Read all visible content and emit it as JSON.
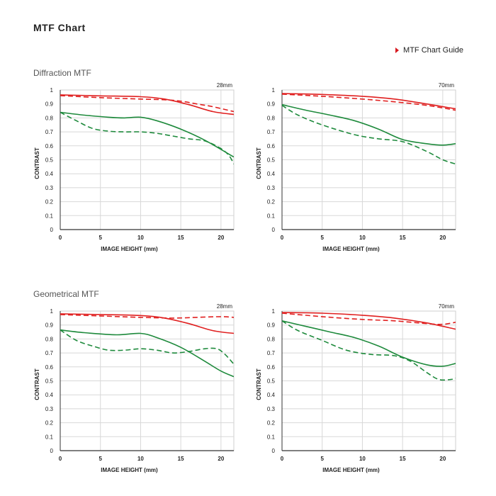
{
  "page": {
    "title": "MTF Chart",
    "guide_link": "MTF Chart Guide",
    "section_diffraction": "Diffraction MTF",
    "section_geometrical": "Geometrical MTF"
  },
  "colors": {
    "red": "#e02020",
    "green": "#1e8a3c",
    "accent": "#d71920"
  },
  "chart_data": [
    {
      "id": "diffraction-28mm",
      "type": "line",
      "focal": "28mm",
      "xlabel": "IMAGE HEIGHT (mm)",
      "ylabel": "CONTRAST",
      "xlim": [
        0,
        21.6
      ],
      "ylim": [
        0,
        1
      ],
      "xticks": [
        "0",
        "5",
        "10",
        "15",
        "20"
      ],
      "yticks": [
        "0",
        "0.1",
        "0.2",
        "0.3",
        "0.4",
        "0.5",
        "0.6",
        "0.7",
        "0.8",
        "0.9",
        "1"
      ],
      "grid": true,
      "series": [
        {
          "color": "red",
          "dash": false,
          "x": [
            0,
            5,
            10,
            13,
            16,
            19,
            21.6
          ],
          "y": [
            0.965,
            0.958,
            0.952,
            0.935,
            0.895,
            0.845,
            0.825
          ]
        },
        {
          "color": "red",
          "dash": true,
          "x": [
            0,
            5,
            10,
            13,
            15,
            17,
            19,
            21.6
          ],
          "y": [
            0.96,
            0.945,
            0.935,
            0.93,
            0.92,
            0.9,
            0.88,
            0.845
          ]
        },
        {
          "color": "green",
          "dash": false,
          "x": [
            0,
            3,
            6,
            8,
            10,
            12,
            15,
            18,
            21.6
          ],
          "y": [
            0.84,
            0.82,
            0.805,
            0.8,
            0.805,
            0.78,
            0.72,
            0.64,
            0.52
          ]
        },
        {
          "color": "green",
          "dash": true,
          "x": [
            0,
            2,
            4,
            6,
            8,
            10,
            12,
            14,
            16,
            18,
            20,
            21,
            21.6
          ],
          "y": [
            0.84,
            0.78,
            0.725,
            0.705,
            0.7,
            0.7,
            0.69,
            0.67,
            0.65,
            0.635,
            0.58,
            0.53,
            0.47
          ]
        }
      ]
    },
    {
      "id": "diffraction-70mm",
      "type": "line",
      "focal": "70mm",
      "xlabel": "IMAGE HEIGHT (mm)",
      "ylabel": "CONTRAST",
      "xlim": [
        0,
        21.6
      ],
      "ylim": [
        0,
        1
      ],
      "xticks": [
        "0",
        "5",
        "10",
        "15",
        "20"
      ],
      "yticks": [
        "0",
        "0.1",
        "0.2",
        "0.3",
        "0.4",
        "0.5",
        "0.6",
        "0.7",
        "0.8",
        "0.9",
        "1"
      ],
      "grid": true,
      "series": [
        {
          "color": "red",
          "dash": false,
          "x": [
            0,
            5,
            10,
            14,
            18,
            21.6
          ],
          "y": [
            0.975,
            0.968,
            0.955,
            0.935,
            0.9,
            0.865
          ]
        },
        {
          "color": "red",
          "dash": true,
          "x": [
            0,
            5,
            10,
            14,
            18,
            21.6
          ],
          "y": [
            0.97,
            0.955,
            0.935,
            0.915,
            0.89,
            0.855
          ]
        },
        {
          "color": "green",
          "dash": false,
          "x": [
            0,
            3,
            6,
            9,
            12,
            15,
            18,
            20,
            21.6
          ],
          "y": [
            0.895,
            0.855,
            0.82,
            0.78,
            0.72,
            0.645,
            0.615,
            0.605,
            0.615
          ]
        },
        {
          "color": "green",
          "dash": true,
          "x": [
            0,
            2,
            5,
            9,
            12,
            15,
            18,
            20,
            21.6
          ],
          "y": [
            0.89,
            0.82,
            0.75,
            0.68,
            0.65,
            0.63,
            0.56,
            0.5,
            0.47
          ]
        }
      ]
    },
    {
      "id": "geometrical-28mm",
      "type": "line",
      "focal": "28mm",
      "xlabel": "IMAGE HEIGHT (mm)",
      "ylabel": "CONTRAST",
      "xlim": [
        0,
        21.6
      ],
      "ylim": [
        0,
        1
      ],
      "xticks": [
        "0",
        "5",
        "10",
        "15",
        "20"
      ],
      "yticks": [
        "0",
        "0.1",
        "0.2",
        "0.3",
        "0.4",
        "0.5",
        "0.6",
        "0.7",
        "0.8",
        "0.9",
        "1"
      ],
      "grid": true,
      "series": [
        {
          "color": "red",
          "dash": false,
          "x": [
            0,
            5,
            10,
            13,
            16,
            19,
            21.6
          ],
          "y": [
            0.98,
            0.975,
            0.968,
            0.95,
            0.91,
            0.86,
            0.84
          ]
        },
        {
          "color": "red",
          "dash": true,
          "x": [
            0,
            5,
            10,
            14,
            17,
            20,
            21.6
          ],
          "y": [
            0.975,
            0.965,
            0.955,
            0.95,
            0.955,
            0.96,
            0.955
          ]
        },
        {
          "color": "green",
          "dash": false,
          "x": [
            0,
            3,
            7,
            10,
            12,
            15,
            18,
            20,
            21.6
          ],
          "y": [
            0.865,
            0.845,
            0.83,
            0.84,
            0.81,
            0.74,
            0.64,
            0.57,
            0.53
          ]
        },
        {
          "color": "green",
          "dash": true,
          "x": [
            0,
            2,
            4,
            6,
            8,
            10,
            12,
            14,
            16,
            18,
            19.5,
            20.5,
            21.6
          ],
          "y": [
            0.865,
            0.79,
            0.75,
            0.72,
            0.72,
            0.73,
            0.72,
            0.7,
            0.71,
            0.73,
            0.73,
            0.69,
            0.62
          ]
        }
      ]
    },
    {
      "id": "geometrical-70mm",
      "type": "line",
      "focal": "70mm",
      "xlabel": "IMAGE HEIGHT (mm)",
      "ylabel": "CONTRAST",
      "xlim": [
        0,
        21.6
      ],
      "ylim": [
        0,
        1
      ],
      "xticks": [
        "0",
        "5",
        "10",
        "15",
        "20"
      ],
      "yticks": [
        "0",
        "0.1",
        "0.2",
        "0.3",
        "0.4",
        "0.5",
        "0.6",
        "0.7",
        "0.8",
        "0.9",
        "1"
      ],
      "grid": true,
      "series": [
        {
          "color": "red",
          "dash": false,
          "x": [
            0,
            5,
            10,
            14,
            18,
            21.6
          ],
          "y": [
            0.99,
            0.985,
            0.97,
            0.95,
            0.915,
            0.87
          ]
        },
        {
          "color": "red",
          "dash": true,
          "x": [
            0,
            5,
            10,
            14,
            18,
            20,
            21.6
          ],
          "y": [
            0.985,
            0.96,
            0.94,
            0.93,
            0.91,
            0.905,
            0.92
          ]
        },
        {
          "color": "green",
          "dash": false,
          "x": [
            0,
            3,
            6,
            9,
            12,
            15,
            18,
            20,
            21.6
          ],
          "y": [
            0.93,
            0.89,
            0.85,
            0.81,
            0.75,
            0.67,
            0.615,
            0.605,
            0.625
          ]
        },
        {
          "color": "green",
          "dash": true,
          "x": [
            0,
            2,
            5,
            8,
            11,
            14,
            16,
            18,
            19.5,
            21,
            21.6
          ],
          "y": [
            0.93,
            0.86,
            0.79,
            0.72,
            0.69,
            0.68,
            0.64,
            0.56,
            0.51,
            0.51,
            0.52
          ]
        }
      ]
    }
  ]
}
